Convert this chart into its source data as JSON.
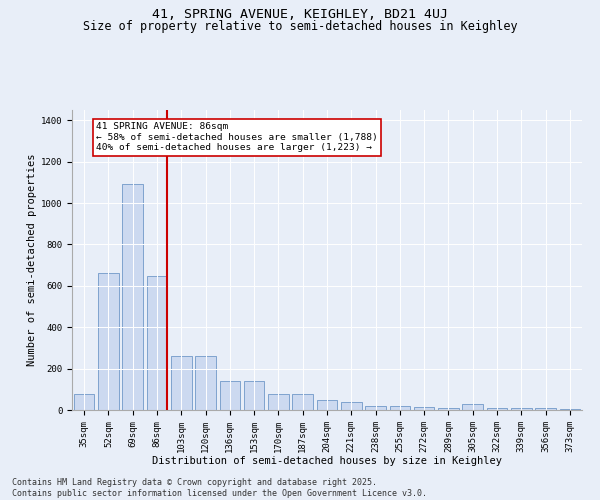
{
  "title_line1": "41, SPRING AVENUE, KEIGHLEY, BD21 4UJ",
  "title_line2": "Size of property relative to semi-detached houses in Keighley",
  "xlabel": "Distribution of semi-detached houses by size in Keighley",
  "ylabel": "Number of semi-detached properties",
  "categories": [
    "35sqm",
    "52sqm",
    "69sqm",
    "86sqm",
    "103sqm",
    "120sqm",
    "136sqm",
    "153sqm",
    "170sqm",
    "187sqm",
    "204sqm",
    "221sqm",
    "238sqm",
    "255sqm",
    "272sqm",
    "289sqm",
    "305sqm",
    "322sqm",
    "339sqm",
    "356sqm",
    "373sqm"
  ],
  "values": [
    75,
    660,
    1090,
    650,
    260,
    260,
    140,
    140,
    75,
    75,
    50,
    40,
    20,
    20,
    15,
    10,
    30,
    10,
    10,
    10,
    3
  ],
  "bar_color": "#ccd9f0",
  "bar_edge_color": "#7098c8",
  "highlight_index": 3,
  "highlight_line_color": "#cc0000",
  "annotation_text": "41 SPRING AVENUE: 86sqm\n← 58% of semi-detached houses are smaller (1,788)\n40% of semi-detached houses are larger (1,223) →",
  "annotation_box_facecolor": "#ffffff",
  "annotation_box_edgecolor": "#cc0000",
  "annotation_fontsize": 6.8,
  "background_color": "#e8eef8",
  "plot_bg_color": "#e8eef8",
  "ylim": [
    0,
    1450
  ],
  "yticks": [
    0,
    200,
    400,
    600,
    800,
    1000,
    1200,
    1400
  ],
  "title_fontsize": 9.5,
  "subtitle_fontsize": 8.5,
  "axis_label_fontsize": 7.5,
  "tick_fontsize": 6.5,
  "footer_text": "Contains HM Land Registry data © Crown copyright and database right 2025.\nContains public sector information licensed under the Open Government Licence v3.0.",
  "footer_fontsize": 6.0
}
